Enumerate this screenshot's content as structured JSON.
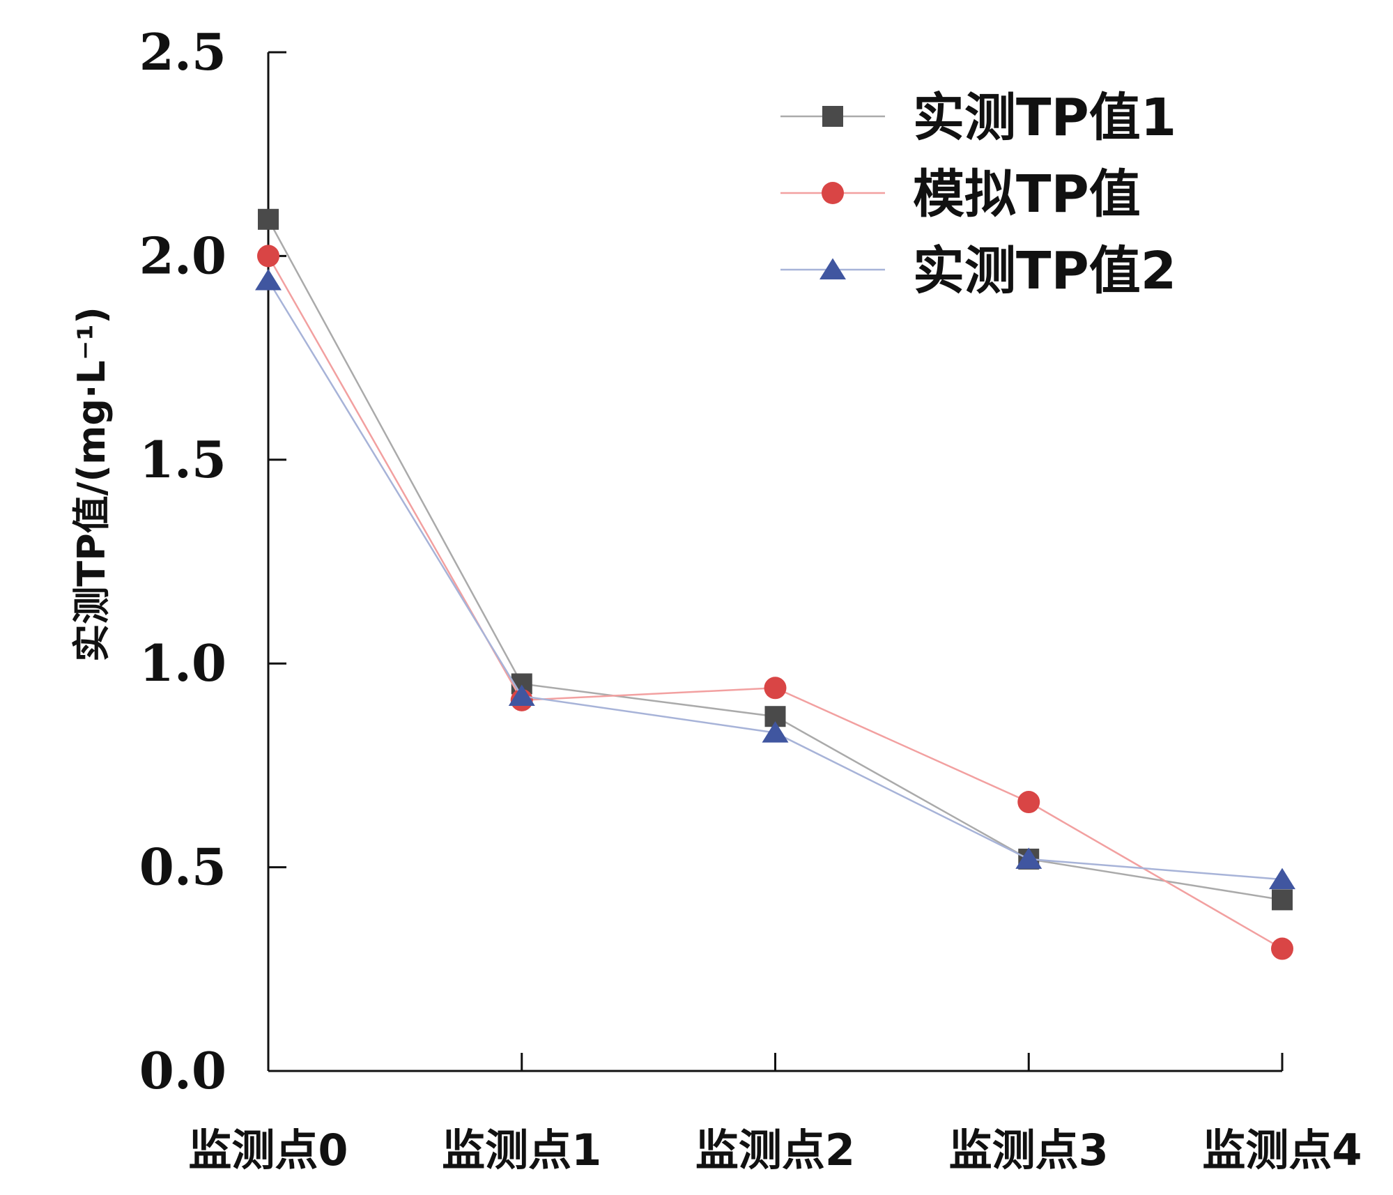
{
  "chart_data": {
    "type": "line",
    "title": "",
    "xlabel": "",
    "ylabel": "实测TP值/(mg·L⁻¹)",
    "categories": [
      "监测点0",
      "监测点1",
      "监测点2",
      "监测点3",
      "监测点4"
    ],
    "ylim": [
      0,
      2.5
    ],
    "yticks": [
      "0.0",
      "0.5",
      "1.0",
      "1.5",
      "2.0",
      "2.5"
    ],
    "grid": false,
    "legend_position": "top-right",
    "series": [
      {
        "name": "实测TP值1",
        "marker": "square",
        "line_color": "#aaaaaa",
        "marker_color": "#4a4a4a",
        "values": [
          2.09,
          0.95,
          0.87,
          0.52,
          0.42
        ]
      },
      {
        "name": "模拟TP值",
        "marker": "circle",
        "line_color": "#f2a0a0",
        "marker_color": "#d94545",
        "values": [
          2.0,
          0.91,
          0.94,
          0.66,
          0.3
        ]
      },
      {
        "name": "实测TP值2",
        "marker": "triangle",
        "line_color": "#a7b3d8",
        "marker_color": "#4056a0",
        "values": [
          1.94,
          0.92,
          0.83,
          0.52,
          0.47
        ]
      }
    ]
  }
}
